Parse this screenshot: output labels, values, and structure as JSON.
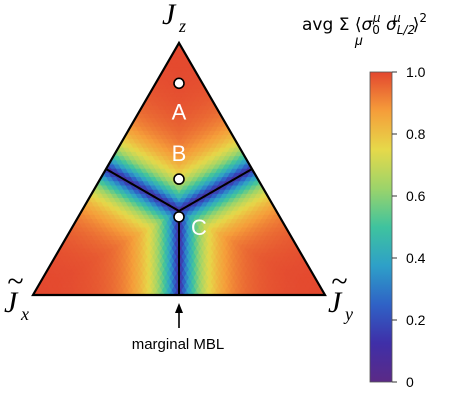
{
  "chart_data": {
    "type": "heatmap",
    "plot": "ternary",
    "corners": [
      {
        "name": "J_x",
        "base": "J",
        "sub": "x",
        "position": "bottom-left"
      },
      {
        "name": "J_z",
        "base": "J",
        "sub": "z",
        "position": "top"
      },
      {
        "name": "J_y",
        "base": "J",
        "sub": "y",
        "position": "bottom-right"
      }
    ],
    "points": [
      {
        "label": "A",
        "coords": {
          "x": 0.08,
          "y": 0.08,
          "z": 0.84
        }
      },
      {
        "label": "B",
        "coords": {
          "x": 0.27,
          "y": 0.27,
          "z": 0.46
        }
      },
      {
        "label": "C",
        "coords": {
          "x": 0.345,
          "y": 0.345,
          "z": 0.31
        }
      }
    ],
    "phase_boundaries": "three lines meeting at Jx = Jy = Jz; from there to the midpoints of the three sides",
    "annotation": "marginal MBL",
    "colorbar": {
      "title": "avg Σ_μ ⟨σ_0^μ σ_{L/2}^μ⟩^2",
      "range": [
        0,
        1
      ],
      "ticks": [
        "1.0",
        "0.8",
        "0.6",
        "0.4",
        "0.2",
        "0"
      ],
      "colormap": "spectral",
      "colors": [
        "#5b2a86",
        "#3f2fa8",
        "#2f62c6",
        "#2ea0c8",
        "#3fc39e",
        "#9cd46a",
        "#e6d94a",
        "#f59d3a",
        "#e3472f"
      ]
    }
  }
}
